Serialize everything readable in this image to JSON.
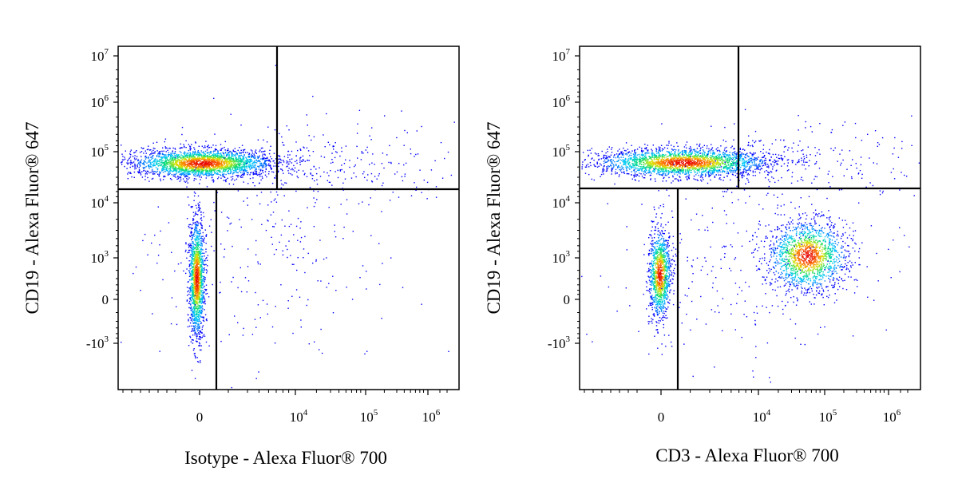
{
  "chart_data": [
    {
      "type": "scatter",
      "subtype": "flow-cytometry-density-dotplot",
      "xlabel": "Isotype - Alexa Fluor® 700",
      "ylabel": "CD19 - Alexa Fluor® 647",
      "x_scale": "biexponential",
      "y_scale": "biexponential",
      "x_ticks": [
        {
          "value": "0",
          "base": "0",
          "exp": ""
        },
        {
          "value": "10^4",
          "base": "10",
          "exp": "4"
        },
        {
          "value": "10^5",
          "base": "10",
          "exp": "5"
        },
        {
          "value": "10^6",
          "base": "10",
          "exp": "6"
        }
      ],
      "y_ticks": [
        {
          "value": "10^7",
          "base": "10",
          "exp": "7"
        },
        {
          "value": "10^6",
          "base": "10",
          "exp": "6"
        },
        {
          "value": "10^5",
          "base": "10",
          "exp": "5"
        },
        {
          "value": "10^4",
          "base": "10",
          "exp": "4"
        },
        {
          "value": "10^3",
          "base": "10",
          "exp": "3"
        },
        {
          "value": "0",
          "base": "0",
          "exp": ""
        },
        {
          "value": "-10^3",
          "base": "-10",
          "exp": "3"
        }
      ],
      "quadrant_gates": {
        "y_threshold": "~1.5×10^4",
        "x_threshold_lower": "~500",
        "x_threshold_upper": "~6×10^3"
      },
      "populations": [
        {
          "x_center": "~0 to 5×10^3",
          "y_center": "~5×10^4",
          "note": "CD19+ cluster"
        },
        {
          "x_center": "~0",
          "y_center": "~300",
          "note": "CD19- cluster"
        }
      ],
      "grid": false,
      "legend": "none"
    },
    {
      "type": "scatter",
      "subtype": "flow-cytometry-density-dotplot",
      "xlabel": "CD3 - Alexa Fluor® 700",
      "ylabel": "CD19 - Alexa Fluor® 647",
      "x_scale": "biexponential",
      "y_scale": "biexponential",
      "x_ticks": [
        {
          "value": "0",
          "base": "0",
          "exp": ""
        },
        {
          "value": "10^4",
          "base": "10",
          "exp": "4"
        },
        {
          "value": "10^5",
          "base": "10",
          "exp": "5"
        },
        {
          "value": "10^6",
          "base": "10",
          "exp": "6"
        }
      ],
      "y_ticks": [
        {
          "value": "10^7",
          "base": "10",
          "exp": "7"
        },
        {
          "value": "10^6",
          "base": "10",
          "exp": "6"
        },
        {
          "value": "10^5",
          "base": "10",
          "exp": "5"
        },
        {
          "value": "10^4",
          "base": "10",
          "exp": "4"
        },
        {
          "value": "10^3",
          "base": "10",
          "exp": "3"
        },
        {
          "value": "0",
          "base": "0",
          "exp": ""
        },
        {
          "value": "-10^3",
          "base": "-10",
          "exp": "3"
        }
      ],
      "quadrant_gates": {
        "y_threshold": "~1.5×10^4",
        "x_threshold_lower": "~500",
        "x_threshold_upper": "~6×10^3"
      },
      "populations": [
        {
          "x_center": "~0 to 3×10^3",
          "y_center": "~5×10^4",
          "note": "CD19+ CD3- cluster"
        },
        {
          "x_center": "~0",
          "y_center": "~300",
          "note": "CD19- CD3- cluster"
        },
        {
          "x_center": "~7×10^4",
          "y_center": "~10^3",
          "note": "CD3+ CD19- cluster"
        }
      ],
      "grid": false,
      "legend": "none"
    }
  ]
}
